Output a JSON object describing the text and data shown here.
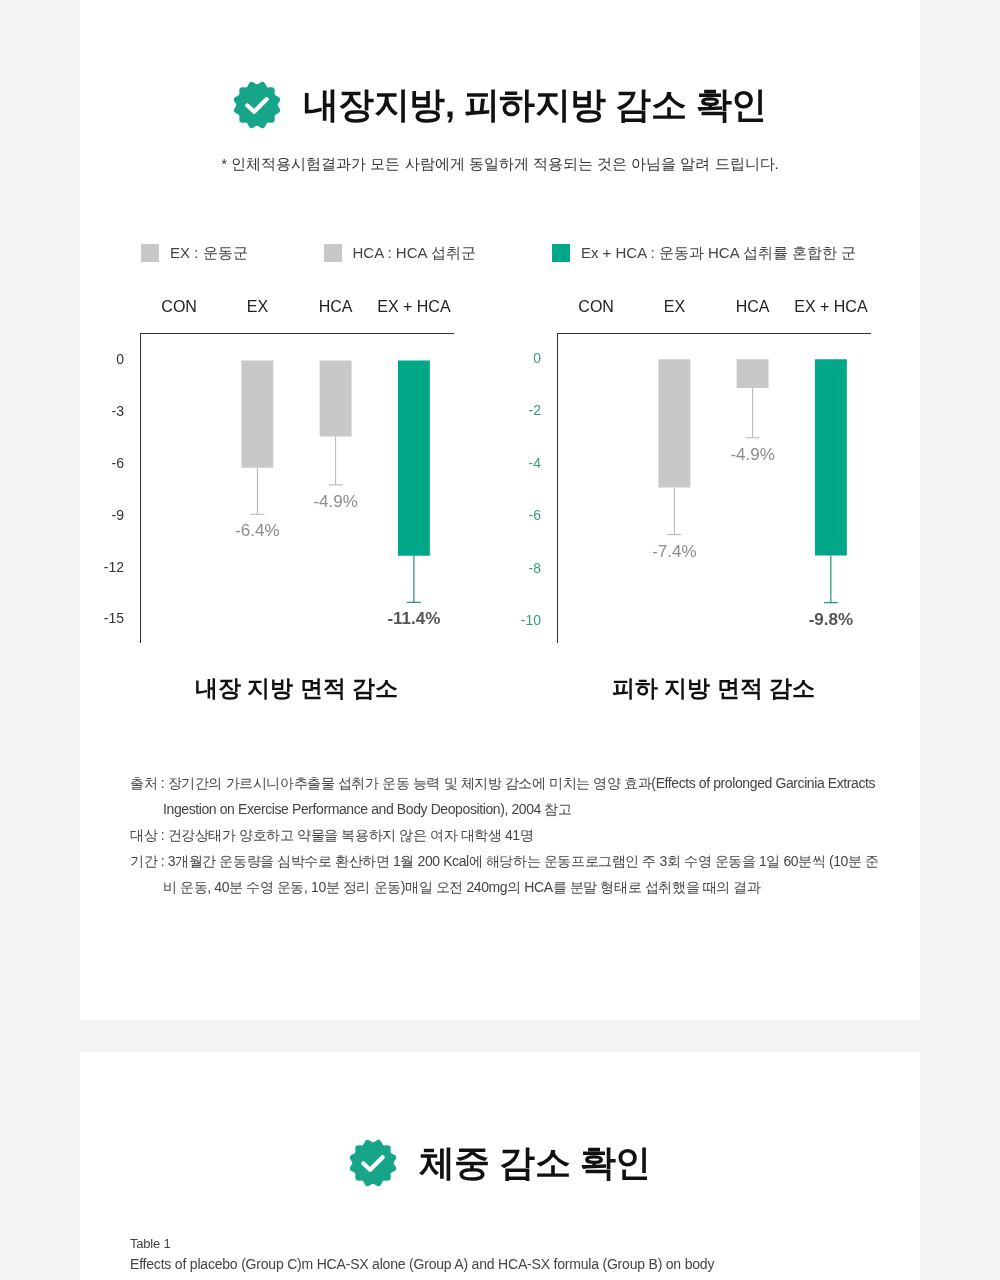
{
  "chart_data": [
    {
      "type": "bar",
      "title": "내장지방, 피하지방 감소 확인",
      "subtitle": "* 인체적용시험결과가 모든 사람에게 동일하게 적용되는 것은 아님을 알려 드립니다.",
      "xlabel": "내장 지방 면적 감소",
      "categories": [
        "CON",
        "EX",
        "HCA",
        "EX + HCA"
      ],
      "series": [
        {
          "name": "EX : 운동군",
          "color": "#c8c8c8",
          "values": [
            null,
            -6.2,
            null,
            null
          ],
          "errors": [
            null,
            [
              -8.9,
              -6.2
            ],
            null,
            null
          ]
        },
        {
          "name": "HCA : HCA 섭취군",
          "color": "#c8c8c8",
          "values": [
            null,
            null,
            -4.4,
            null
          ],
          "errors": [
            null,
            null,
            [
              -7.2,
              -4.4
            ],
            null
          ]
        },
        {
          "name": "Ex + HCA : 운동과 HCA 섭취률 혼합한 군",
          "color": "#00a887",
          "values": [
            null,
            null,
            null,
            -11.3
          ],
          "errors": [
            null,
            null,
            null,
            [
              -14.0,
              -11.3
            ]
          ]
        }
      ],
      "ylim": [
        -16.3,
        1.6
      ],
      "yticks": [
        0,
        -3,
        -6,
        -9,
        -12,
        -15
      ],
      "legend": "top",
      "annotations": [
        {
          "text": "-6.4%",
          "x": "EX",
          "y": -8.9
        },
        {
          "text": "-4.9%",
          "x": "HCA",
          "y": -7.2
        },
        {
          "text": "-11.4%",
          "x": "EX + HCA",
          "y": -14.0
        },
        "출처 : 장기간의 가르시니아추출물 섭취가 운동 능력 및 체지방 감소에 미치는 영양 효과(Effects of prolonged Garcinia Extracts Ingestion on Exercise Performance and Body Deoposition), 2004 참고",
        "대상 : 건강상태가 양호하고 약물을 복용하지 않은 여자 대학생 41명",
        "기간 : 3개월간 운동량을 심박수로 환산하면 1월 200 Kcal에 해당하는 운동프로그램인 주 3회 수영 운동을 1일 60분씩 (10분 준비 운동, 40분 수영 운동, 10분 정리 운동)매일 오전 240mg의 HCA를 분말 형태로 섭취했을 때의 결과"
      ]
    },
    {
      "type": "bar",
      "xlabel": "피하 지방 면적 감소",
      "categories": [
        "CON",
        "EX",
        "HCA",
        "EX + HCA"
      ],
      "series": [
        {
          "color": "#c8c8c8",
          "values": [
            null,
            -4.9,
            null,
            null
          ],
          "errors": [
            null,
            [
              -6.7,
              -4.9
            ],
            null,
            null
          ]
        },
        {
          "color": "#c8c8c8",
          "values": [
            null,
            null,
            -1.1,
            null
          ],
          "errors": [
            null,
            null,
            [
              -3.0,
              -1.1
            ],
            null
          ]
        },
        {
          "color": "#00a887",
          "values": [
            null,
            null,
            null,
            -7.5
          ],
          "errors": [
            null,
            null,
            null,
            [
              -9.3,
              -7.5
            ]
          ]
        }
      ],
      "ylim": [
        -10.8,
        1.0
      ],
      "yticks": [
        0,
        -2,
        -4,
        -6,
        -8,
        -10
      ],
      "annotations": [
        {
          "text": "-7.4%",
          "x": "EX",
          "y": -6.7
        },
        {
          "text": "-4.9%",
          "x": "HCA",
          "y": -3.0
        },
        {
          "text": "-9.8%",
          "x": "EX + HCA",
          "y": -9.3
        }
      ]
    },
    {
      "type": "other",
      "title": "체중 감소 확인",
      "annotations": [
        "Table 1",
        "Effects of placebo (Group C)m HCA-SX alone (Group A) and HCA-SX formula (Group B) on body"
      ]
    }
  ]
}
